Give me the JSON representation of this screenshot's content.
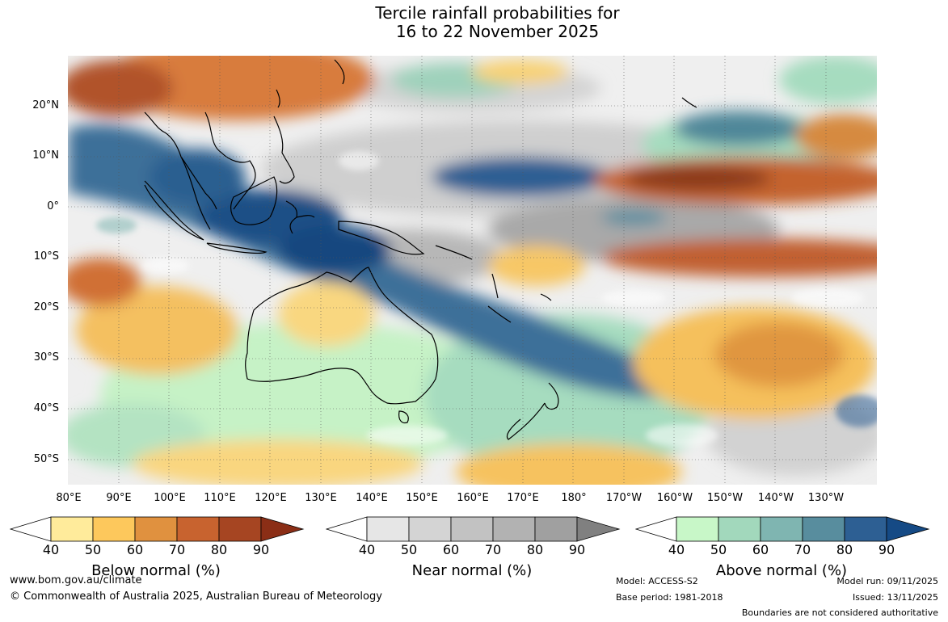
{
  "title_line1": "Tercile rainfall probabilities for",
  "title_line2": "16 to 22 November 2025",
  "lat_labels": [
    "20°N",
    "10°N",
    "0°",
    "10°S",
    "20°S",
    "30°S",
    "40°S",
    "50°S"
  ],
  "lon_labels": [
    "80°E",
    "90°E",
    "100°E",
    "110°E",
    "120°E",
    "130°E",
    "140°E",
    "150°E",
    "160°E",
    "170°E",
    "180°",
    "170°W",
    "160°W",
    "150°W",
    "140°W",
    "130°W"
  ],
  "colorbars": [
    {
      "label": "Below normal (%)",
      "ticks": [
        "40",
        "50",
        "60",
        "70",
        "80",
        "90"
      ],
      "colors": [
        "#ffffff",
        "#ffeb9b",
        "#fdc85c",
        "#e0913f",
        "#c8632f",
        "#a64522",
        "#8b2e16"
      ]
    },
    {
      "label": "Near normal (%)",
      "ticks": [
        "40",
        "50",
        "60",
        "70",
        "80",
        "90"
      ],
      "colors": [
        "#ffffff",
        "#e6e6e6",
        "#d4d4d4",
        "#c2c2c2",
        "#b2b2b2",
        "#a0a0a0",
        "#808080"
      ]
    },
    {
      "label": "Above normal (%)",
      "ticks": [
        "40",
        "50",
        "60",
        "70",
        "80",
        "90"
      ],
      "colors": [
        "#ffffff",
        "#c8f7c8",
        "#a2d8bc",
        "#7fb5b1",
        "#588d9e",
        "#2d5f93",
        "#154a85"
      ]
    }
  ],
  "footer": {
    "website": "www.bom.gov.au/climate",
    "copyright": "© Commonwealth of Australia 2025, Australian Bureau of Meteorology",
    "model": "Model: ACCESS-S2",
    "base_period": "Base period: 1981-2018",
    "model_run": "Model run: 09/11/2025",
    "issued": "Issued: 13/11/2025",
    "disclaimer": "Boundaries are not considered authoritative"
  },
  "map_colors": {
    "ocean": "#f5f5f5",
    "coast": "#000000",
    "grid": "#555555"
  }
}
